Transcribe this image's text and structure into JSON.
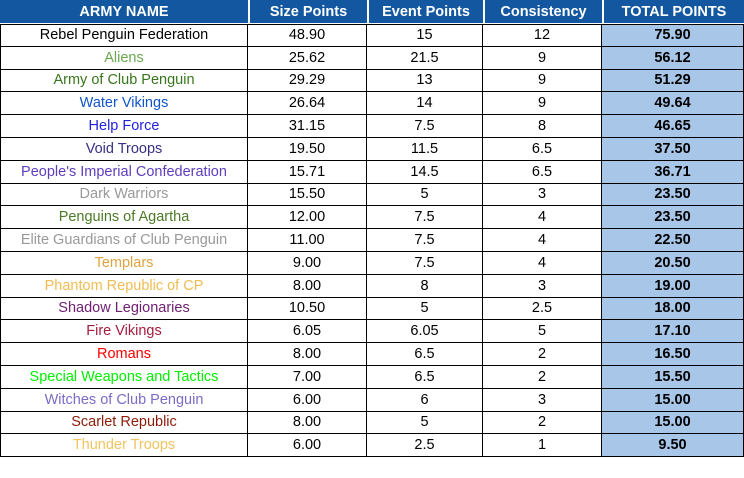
{
  "colors": {
    "header_bg": "#1257A0",
    "header_text": "#FFFFFF",
    "total_column_bg": "#A8C6E8",
    "grid_border": "#000000",
    "body_bg": "#FFFFFF"
  },
  "table": {
    "columns": [
      "ARMY NAME",
      "Size Points",
      "Event Points",
      "Consistency",
      "TOTAL POINTS"
    ],
    "rows": [
      {
        "name": "Rebel Penguin Federation",
        "color": "#000000",
        "size": "48.90",
        "event": "15",
        "consistency": "12",
        "total": "75.90"
      },
      {
        "name": "Aliens",
        "color": "#6AA84F",
        "size": "25.62",
        "event": "21.5",
        "consistency": "9",
        "total": "56.12"
      },
      {
        "name": "Army of Club Penguin",
        "color": "#38761D",
        "size": "29.29",
        "event": "13",
        "consistency": "9",
        "total": "51.29"
      },
      {
        "name": "Water Vikings",
        "color": "#1155CC",
        "size": "26.64",
        "event": "14",
        "consistency": "9",
        "total": "49.64"
      },
      {
        "name": "Help Force",
        "color": "#2222DD",
        "size": "31.15",
        "event": "7.5",
        "consistency": "8",
        "total": "46.65"
      },
      {
        "name": "Void Troops",
        "color": "#363084",
        "size": "19.50",
        "event": "11.5",
        "consistency": "6.5",
        "total": "37.50"
      },
      {
        "name": "People's Imperial Confederation",
        "color": "#5F3DBE",
        "size": "15.71",
        "event": "14.5",
        "consistency": "6.5",
        "total": "36.71"
      },
      {
        "name": "Dark Warriors",
        "color": "#999999",
        "size": "15.50",
        "event": "5",
        "consistency": "3",
        "total": "23.50"
      },
      {
        "name": "Penguins of Agartha",
        "color": "#4C7A26",
        "size": "12.00",
        "event": "7.5",
        "consistency": "4",
        "total": "23.50"
      },
      {
        "name": "Elite Guardians of Club Penguin",
        "color": "#999999",
        "size": "11.00",
        "event": "7.5",
        "consistency": "4",
        "total": "22.50"
      },
      {
        "name": "Templars",
        "color": "#E0A33E",
        "size": "9.00",
        "event": "7.5",
        "consistency": "4",
        "total": "20.50"
      },
      {
        "name": "Phantom Republic of CP",
        "color": "#F0BC52",
        "size": "8.00",
        "event": "8",
        "consistency": "3",
        "total": "19.00"
      },
      {
        "name": "Shadow Legionaries",
        "color": "#6E2172",
        "size": "10.50",
        "event": "5",
        "consistency": "2.5",
        "total": "18.00"
      },
      {
        "name": "Fire Vikings",
        "color": "#A61C3C",
        "size": "6.05",
        "event": "6.05",
        "consistency": "5",
        "total": "17.10"
      },
      {
        "name": "Romans",
        "color": "#FF0000",
        "size": "8.00",
        "event": "6.5",
        "consistency": "2",
        "total": "16.50"
      },
      {
        "name": "Special Weapons and Tactics",
        "color": "#00F000",
        "size": "7.00",
        "event": "6.5",
        "consistency": "2",
        "total": "15.50"
      },
      {
        "name": "Witches of Club Penguin",
        "color": "#7D6BC4",
        "size": "6.00",
        "event": "6",
        "consistency": "3",
        "total": "15.00"
      },
      {
        "name": "Scarlet Republic",
        "color": "#8E1A0A",
        "size": "8.00",
        "event": "5",
        "consistency": "2",
        "total": "15.00"
      },
      {
        "name": "Thunder Troops",
        "color": "#F0C35F",
        "size": "6.00",
        "event": "2.5",
        "consistency": "1",
        "total": "9.50"
      }
    ]
  }
}
